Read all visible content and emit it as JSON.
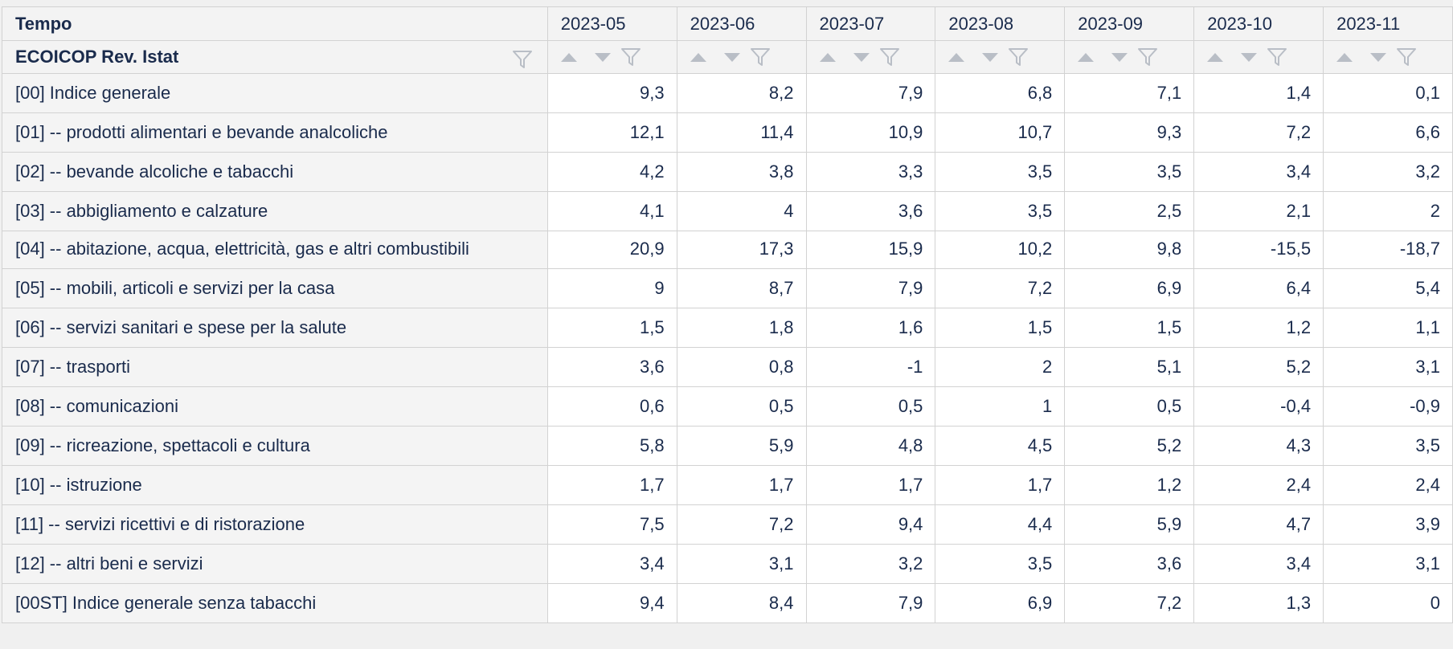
{
  "table": {
    "row_header_title": "Tempo",
    "dimension_label": "ECOICOP Rev. Istat",
    "columns": [
      "2023-05",
      "2023-06",
      "2023-07",
      "2023-08",
      "2023-09",
      "2023-10",
      "2023-11"
    ],
    "rows": [
      {
        "label": "[00] Indice generale",
        "values": [
          "9,3",
          "8,2",
          "7,9",
          "6,8",
          "7,1",
          "1,4",
          "0,1"
        ]
      },
      {
        "label": "[01] -- prodotti alimentari e bevande analcoliche",
        "values": [
          "12,1",
          "11,4",
          "10,9",
          "10,7",
          "9,3",
          "7,2",
          "6,6"
        ]
      },
      {
        "label": "[02] -- bevande alcoliche e tabacchi",
        "values": [
          "4,2",
          "3,8",
          "3,3",
          "3,5",
          "3,5",
          "3,4",
          "3,2"
        ]
      },
      {
        "label": "[03] -- abbigliamento e calzature",
        "values": [
          "4,1",
          "4",
          "3,6",
          "3,5",
          "2,5",
          "2,1",
          "2"
        ]
      },
      {
        "label": "[04] -- abitazione, acqua, elettricità, gas e altri combustibili",
        "values": [
          "20,9",
          "17,3",
          "15,9",
          "10,2",
          "9,8",
          "-15,5",
          "-18,7"
        ]
      },
      {
        "label": "[05] -- mobili, articoli e servizi per la casa",
        "values": [
          "9",
          "8,7",
          "7,9",
          "7,2",
          "6,9",
          "6,4",
          "5,4"
        ]
      },
      {
        "label": "[06] -- servizi sanitari e spese per la salute",
        "values": [
          "1,5",
          "1,8",
          "1,6",
          "1,5",
          "1,5",
          "1,2",
          "1,1"
        ]
      },
      {
        "label": "[07] -- trasporti",
        "values": [
          "3,6",
          "0,8",
          "-1",
          "2",
          "5,1",
          "5,2",
          "3,1"
        ]
      },
      {
        "label": "[08] -- comunicazioni",
        "values": [
          "0,6",
          "0,5",
          "0,5",
          "1",
          "0,5",
          "-0,4",
          "-0,9"
        ]
      },
      {
        "label": "[09] -- ricreazione, spettacoli e cultura",
        "values": [
          "5,8",
          "5,9",
          "4,8",
          "4,5",
          "5,2",
          "4,3",
          "3,5"
        ]
      },
      {
        "label": "[10] -- istruzione",
        "values": [
          "1,7",
          "1,7",
          "1,7",
          "1,7",
          "1,2",
          "2,4",
          "2,4"
        ]
      },
      {
        "label": "[11] -- servizi ricettivi e di ristorazione",
        "values": [
          "7,5",
          "7,2",
          "9,4",
          "4,4",
          "5,9",
          "4,7",
          "3,9"
        ]
      },
      {
        "label": "[12] -- altri beni e servizi",
        "values": [
          "3,4",
          "3,1",
          "3,2",
          "3,5",
          "3,6",
          "3,4",
          "3,1"
        ]
      },
      {
        "label": "[00ST] Indice generale senza tabacchi",
        "values": [
          "9,4",
          "8,4",
          "7,9",
          "6,9",
          "7,2",
          "1,3",
          "0"
        ]
      }
    ]
  },
  "icons": {
    "sort_ascending": "triangle-up-icon",
    "sort_descending": "triangle-down-icon",
    "filter": "funnel-icon"
  },
  "colors": {
    "text": "#1a2b4c",
    "header_bg": "#f3f3f3",
    "border": "#d2d2d2",
    "icon": "#b9bec6"
  }
}
